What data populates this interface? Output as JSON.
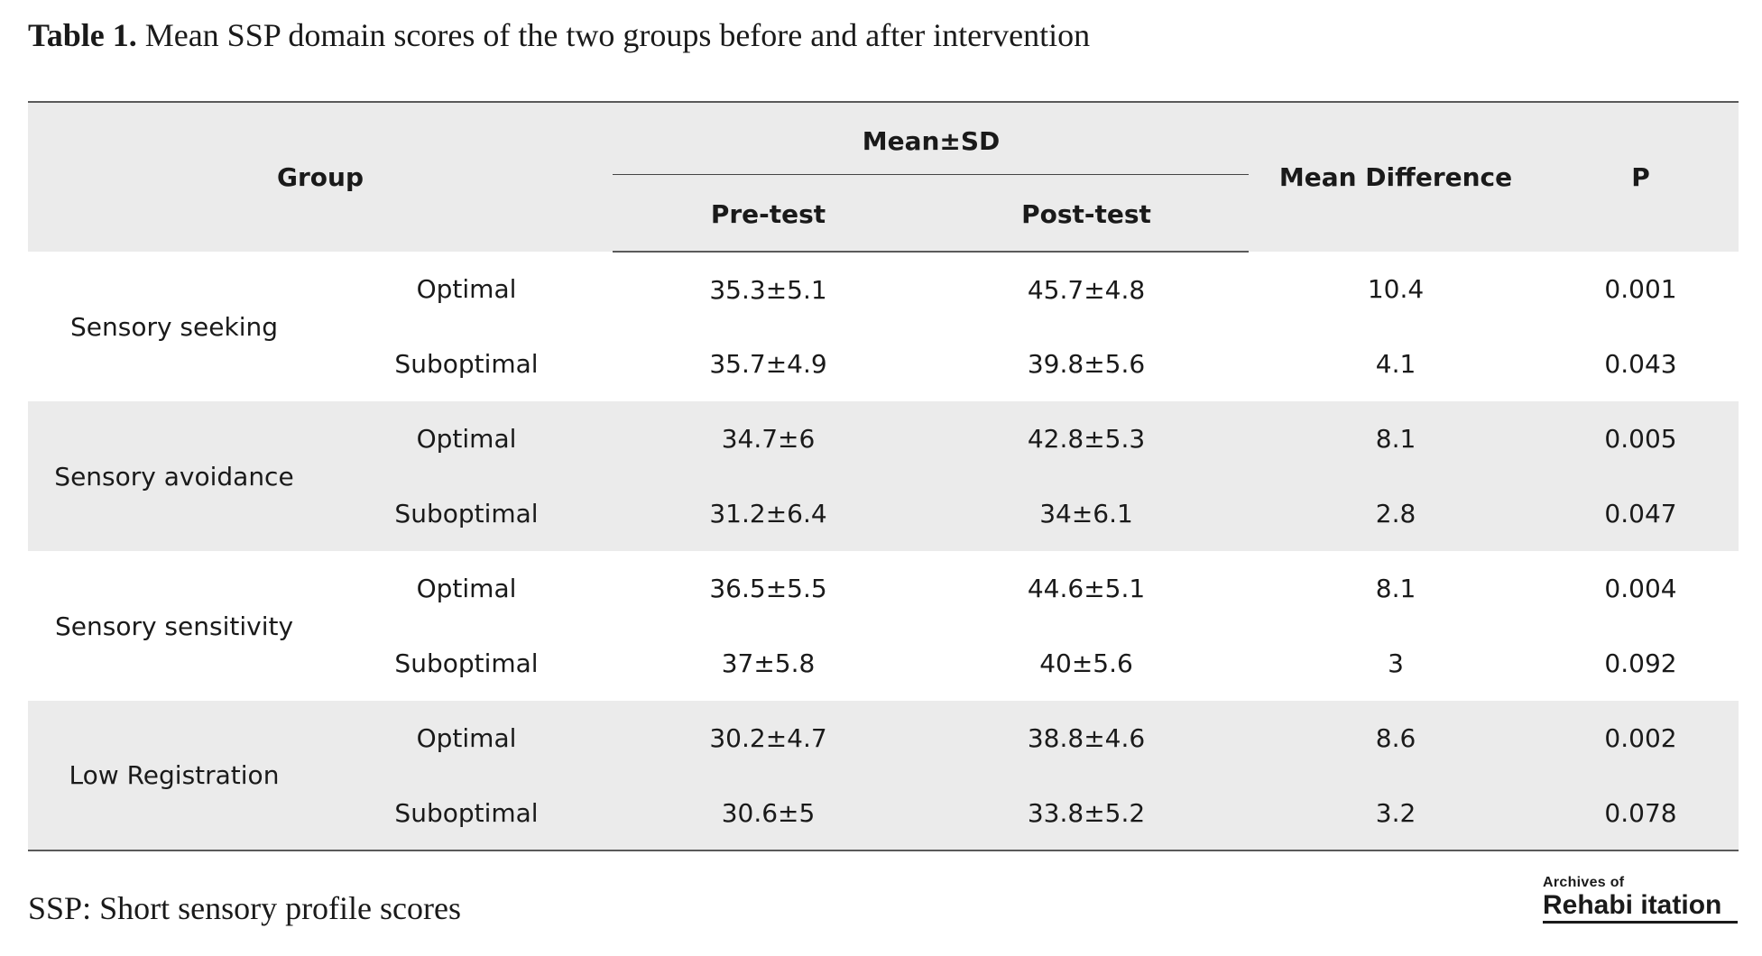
{
  "caption": {
    "label": "Table 1.",
    "text": " Mean SSP domain scores of the two groups before and after intervention"
  },
  "table": {
    "headers": {
      "group": "Group",
      "mean_sd": "Mean±SD",
      "pre_test": "Pre-test",
      "post_test": "Post-test",
      "mean_difference": "Mean Difference",
      "p": "P"
    },
    "rows": [
      {
        "domain": "Sensory seeking",
        "subgroup": "Optimal",
        "pre": "35.3±5.1",
        "post": "45.7±4.8",
        "diff": "10.4",
        "p": "0.001"
      },
      {
        "domain": "Sensory seeking",
        "subgroup": "Suboptimal",
        "pre": "35.7±4.9",
        "post": "39.8±5.6",
        "diff": "4.1",
        "p": "0.043"
      },
      {
        "domain": "Sensory avoidance",
        "subgroup": "Optimal",
        "pre": "34.7±6",
        "post": "42.8±5.3",
        "diff": "8.1",
        "p": "0.005"
      },
      {
        "domain": "Sensory avoidance",
        "subgroup": "Suboptimal",
        "pre": "31.2±6.4",
        "post": "34±6.1",
        "diff": "2.8",
        "p": "0.047"
      },
      {
        "domain": "Sensory sensitivity",
        "subgroup": "Optimal",
        "pre": "36.5±5.5",
        "post": "44.6±5.1",
        "diff": "8.1",
        "p": "0.004"
      },
      {
        "domain": "Sensory sensitivity",
        "subgroup": "Suboptimal",
        "pre": "37±5.8",
        "post": "40±5.6",
        "diff": "3",
        "p": "0.092"
      },
      {
        "domain": "Low Registration",
        "subgroup": "Optimal",
        "pre": "30.2±4.7",
        "post": "38.8±4.6",
        "diff": "8.6",
        "p": "0.002"
      },
      {
        "domain": "Low Registration",
        "subgroup": "Suboptimal",
        "pre": "30.6±5",
        "post": "33.8±5.2",
        "diff": "3.2",
        "p": "0.078"
      }
    ]
  },
  "footnote": "SSP: Short sensory profile scores",
  "logo": {
    "top": "Archives of",
    "main": "Rehabi itation"
  }
}
